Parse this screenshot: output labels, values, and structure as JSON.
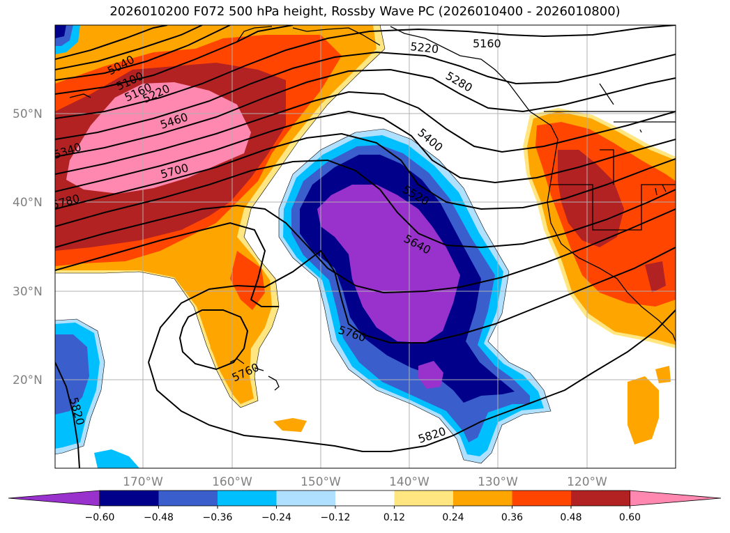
{
  "title": "2026010200 F072 500 hPa height, Rossby Wave PC (2026010400 - 2026010800)",
  "lat_labels": [
    "50°N",
    "40°N",
    "30°N",
    "20°N"
  ],
  "lon_labels": [
    "170°W",
    "160°W",
    "150°W",
    "140°W",
    "130°W",
    "120°W"
  ],
  "contour_labels": [
    "5040",
    "5100",
    "5160",
    "5220",
    "5340",
    "5460",
    "5700",
    "5780",
    "5220",
    "5160",
    "5280",
    "5400",
    "5520",
    "5640",
    "5760",
    "5760",
    "5820",
    "5820"
  ],
  "colorbar": {
    "ticks": [
      "−0.60",
      "−0.48",
      "−0.36",
      "−0.24",
      "−0.12",
      "0.12",
      "0.24",
      "0.36",
      "0.48",
      "0.60"
    ],
    "colors": [
      "#9932cc",
      "#00008b",
      "#3a5fcd",
      "#00bfff",
      "#b0e0ff",
      "#ffffff",
      "#ffe680",
      "#ffa500",
      "#ff4500",
      "#b22222",
      "#ff88b0",
      "#ff88b0"
    ],
    "extend": "both"
  },
  "fill_colors": {
    "neg_060": "#9932cc",
    "neg_048": "#00008b",
    "neg_036": "#3a5fcd",
    "neg_024": "#00bfff",
    "neg_012": "#b0e0ff",
    "pos_012": "#ffe680",
    "pos_024": "#ffa500",
    "pos_036": "#ff4500",
    "pos_048": "#b22222",
    "pos_060": "#ff88b0"
  }
}
